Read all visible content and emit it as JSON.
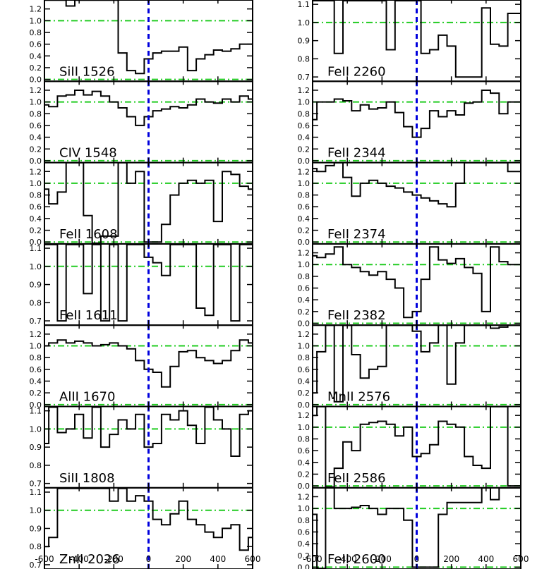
{
  "chart_data": {
    "type": "line",
    "style": "step",
    "colors": {
      "spectrum": "#000000",
      "zero_line": "#0000dd",
      "reference_lines": "#22cc22"
    },
    "x_axis": {
      "range": [
        -600,
        600
      ],
      "ticks": [
        -600,
        -400,
        -200,
        0,
        200,
        400,
        600
      ],
      "tick_labels": [
        "-600",
        "-400",
        "-200",
        "0",
        "200",
        "400",
        "600"
      ]
    },
    "panels": [
      {
        "label": "SiII 1526",
        "column": 0,
        "row": 0,
        "ylim": [
          -0.02,
          1.34
        ],
        "yticks": [
          0.0,
          0.2,
          0.4,
          0.6,
          0.8,
          1.0,
          1.2
        ],
        "ytick_labels": [
          "0.0",
          "0.2",
          "0.4",
          "0.6",
          "0.8",
          "1.0",
          "1.2"
        ],
        "ref_lines": [
          1.0,
          0.0
        ],
        "x": [
          -600,
          -550,
          -500,
          -450,
          -400,
          -350,
          -300,
          -250,
          -200,
          -150,
          -100,
          -50,
          0,
          50,
          100,
          150,
          200,
          250,
          300,
          350,
          400,
          450,
          500,
          550,
          600
        ],
        "y": [
          1.35,
          1.35,
          1.35,
          1.25,
          1.35,
          1.35,
          1.35,
          1.35,
          1.35,
          0.45,
          0.15,
          0.1,
          0.35,
          0.45,
          0.48,
          0.48,
          0.55,
          0.15,
          0.35,
          0.42,
          0.5,
          0.48,
          0.52,
          0.6,
          0.6
        ]
      },
      {
        "label": "CIV 1548",
        "column": 0,
        "row": 1,
        "ylim": [
          -0.02,
          1.34
        ],
        "yticks": [
          0.0,
          0.2,
          0.4,
          0.6,
          0.8,
          1.0,
          1.2
        ],
        "ytick_labels": [
          "0.0",
          "0.2",
          "0.4",
          "0.6",
          "0.8",
          "1.0",
          "1.2"
        ],
        "ref_lines": [
          1.0,
          0.0
        ],
        "x": [
          -600,
          -550,
          -500,
          -450,
          -400,
          -350,
          -300,
          -250,
          -200,
          -150,
          -100,
          -50,
          0,
          50,
          100,
          150,
          200,
          250,
          300,
          350,
          400,
          450,
          500,
          550,
          600
        ],
        "y": [
          0.95,
          0.92,
          1.1,
          1.12,
          1.2,
          1.12,
          1.18,
          1.1,
          1.0,
          0.9,
          0.75,
          0.6,
          0.75,
          0.85,
          0.88,
          0.92,
          0.9,
          0.95,
          1.05,
          1.0,
          0.98,
          1.05,
          1.0,
          1.1,
          1.05
        ]
      },
      {
        "label": "FeII 1608",
        "column": 0,
        "row": 2,
        "ylim": [
          -0.02,
          1.34
        ],
        "yticks": [
          0.0,
          0.2,
          0.4,
          0.6,
          0.8,
          1.0,
          1.2
        ],
        "ytick_labels": [
          "0.0",
          "0.2",
          "0.4",
          "0.6",
          "0.8",
          "1.0",
          "1.2"
        ],
        "ref_lines": [
          1.0,
          0.0
        ],
        "x": [
          -600,
          -550,
          -500,
          -450,
          -400,
          -350,
          -300,
          -250,
          -200,
          -150,
          -100,
          -50,
          0,
          50,
          100,
          150,
          200,
          250,
          300,
          350,
          400,
          450,
          500,
          550,
          600
        ],
        "y": [
          0.9,
          0.65,
          0.85,
          1.35,
          1.35,
          0.45,
          -0.02,
          0.1,
          0.1,
          1.35,
          1.0,
          1.2,
          0.0,
          0.0,
          0.3,
          0.8,
          1.0,
          1.05,
          1.0,
          1.05,
          0.35,
          1.2,
          1.15,
          0.95,
          0.9
        ]
      },
      {
        "label": "FeII 1611",
        "column": 0,
        "row": 3,
        "ylim": [
          0.68,
          1.12
        ],
        "yticks": [
          0.7,
          0.8,
          0.9,
          1.0,
          1.1
        ],
        "ytick_labels": [
          "0.7",
          "0.8",
          "0.9",
          "1.0",
          "1.1"
        ],
        "ref_lines": [
          1.0
        ],
        "x": [
          -600,
          -550,
          -500,
          -450,
          -400,
          -350,
          -300,
          -250,
          -200,
          -150,
          -100,
          -50,
          0,
          50,
          100,
          150,
          200,
          250,
          300,
          350,
          400,
          450,
          500,
          550,
          600
        ],
        "y": [
          1.12,
          1.12,
          0.7,
          1.12,
          1.12,
          0.85,
          1.12,
          0.7,
          1.12,
          0.7,
          1.12,
          1.12,
          1.05,
          1.02,
          0.95,
          1.12,
          1.12,
          1.12,
          0.77,
          0.73,
          1.12,
          1.12,
          0.7,
          1.12,
          1.12
        ]
      },
      {
        "label": "AlII 1670",
        "column": 0,
        "row": 4,
        "ylim": [
          -0.02,
          1.34
        ],
        "yticks": [
          0.0,
          0.2,
          0.4,
          0.6,
          0.8,
          1.0,
          1.2
        ],
        "ytick_labels": [
          "0.0",
          "0.2",
          "0.4",
          "0.6",
          "0.8",
          "1.0",
          "1.2"
        ],
        "ref_lines": [
          1.0,
          0.0
        ],
        "x": [
          -600,
          -550,
          -500,
          -450,
          -400,
          -350,
          -300,
          -250,
          -200,
          -150,
          -100,
          -50,
          0,
          50,
          100,
          150,
          200,
          250,
          300,
          350,
          400,
          450,
          500,
          550,
          600
        ],
        "y": [
          1.0,
          1.05,
          1.1,
          1.05,
          1.08,
          1.05,
          1.0,
          1.02,
          1.05,
          1.0,
          0.95,
          0.75,
          0.6,
          0.55,
          0.3,
          0.65,
          0.9,
          0.92,
          0.8,
          0.75,
          0.7,
          0.75,
          0.92,
          1.1,
          1.05
        ]
      },
      {
        "label": "SiII 1808",
        "column": 0,
        "row": 5,
        "ylim": [
          0.68,
          1.12
        ],
        "yticks": [
          0.7,
          0.8,
          0.9,
          1.0,
          1.1
        ],
        "ytick_labels": [
          "0.7",
          "0.8",
          "0.9",
          "1.0",
          "1.1"
        ],
        "ref_lines": [
          1.0
        ],
        "x": [
          -600,
          -550,
          -500,
          -450,
          -400,
          -350,
          -300,
          -250,
          -200,
          -150,
          -100,
          -50,
          0,
          50,
          100,
          150,
          200,
          250,
          300,
          350,
          400,
          450,
          500,
          550,
          600
        ],
        "y": [
          0.92,
          1.12,
          0.98,
          1.0,
          1.08,
          0.95,
          1.12,
          0.9,
          0.97,
          1.05,
          1.0,
          1.08,
          0.9,
          0.92,
          1.08,
          1.05,
          1.1,
          1.02,
          0.92,
          1.12,
          1.05,
          1.0,
          0.85,
          1.08,
          1.1
        ]
      },
      {
        "label": "ZnII 2026",
        "column": 0,
        "row": 6,
        "ylim": [
          0.68,
          1.12
        ],
        "yticks": [
          0.7,
          0.8,
          0.9,
          1.0,
          1.1
        ],
        "ytick_labels": [
          "0.7",
          "0.8",
          "0.9",
          "1.0",
          "1.1"
        ],
        "ref_lines": [
          1.0
        ],
        "x": [
          -600,
          -550,
          -500,
          -450,
          -400,
          -350,
          -300,
          -250,
          -200,
          -150,
          -100,
          -50,
          0,
          50,
          100,
          150,
          200,
          250,
          300,
          350,
          400,
          450,
          500,
          550,
          600
        ],
        "y": [
          0.8,
          0.85,
          1.12,
          1.12,
          1.12,
          1.12,
          1.12,
          1.12,
          1.05,
          1.12,
          1.05,
          1.08,
          1.05,
          0.95,
          0.92,
          0.98,
          1.05,
          0.95,
          0.92,
          0.88,
          0.85,
          0.9,
          0.92,
          0.78,
          0.85
        ]
      },
      {
        "label": "FeII 2260",
        "column": 1,
        "row": 0,
        "ylim": [
          0.68,
          1.12
        ],
        "yticks": [
          0.7,
          0.8,
          0.9,
          1.0,
          1.1
        ],
        "ytick_labels": [
          "0.7",
          "0.8",
          "0.9",
          "1.0",
          "1.1"
        ],
        "ref_lines": [
          1.0
        ],
        "x": [
          -600,
          -550,
          -500,
          -450,
          -400,
          -350,
          -300,
          -250,
          -200,
          -150,
          -100,
          -50,
          0,
          50,
          100,
          150,
          200,
          250,
          300,
          350,
          400,
          450,
          500,
          550,
          600
        ],
        "y": [
          1.12,
          1.12,
          1.12,
          0.83,
          1.12,
          1.12,
          1.12,
          1.12,
          1.12,
          0.85,
          1.12,
          1.12,
          1.12,
          0.83,
          0.85,
          0.93,
          0.87,
          0.7,
          0.7,
          0.7,
          1.08,
          0.88,
          0.87,
          1.05,
          1.05
        ]
      },
      {
        "label": "FeII 2344",
        "column": 1,
        "row": 1,
        "ylim": [
          -0.02,
          1.34
        ],
        "yticks": [
          0.0,
          0.2,
          0.4,
          0.6,
          0.8,
          1.0,
          1.2
        ],
        "ytick_labels": [
          "0.0",
          "0.2",
          "0.4",
          "0.6",
          "0.8",
          "1.0",
          "1.2"
        ],
        "ref_lines": [
          1.0,
          0.0
        ],
        "x": [
          -600,
          -550,
          -500,
          -450,
          -400,
          -350,
          -300,
          -250,
          -200,
          -150,
          -100,
          -50,
          0,
          50,
          100,
          150,
          200,
          250,
          300,
          350,
          400,
          450,
          500,
          550,
          600
        ],
        "y": [
          0.7,
          1.0,
          1.0,
          1.05,
          1.02,
          0.85,
          0.95,
          0.88,
          0.9,
          1.0,
          0.82,
          0.58,
          0.4,
          0.55,
          0.85,
          0.75,
          0.85,
          0.78,
          0.98,
          1.0,
          1.2,
          1.15,
          0.8,
          1.0,
          1.0
        ]
      },
      {
        "label": "FeII 2374",
        "column": 1,
        "row": 2,
        "ylim": [
          -0.02,
          1.34
        ],
        "yticks": [
          0.0,
          0.2,
          0.4,
          0.6,
          0.8,
          1.0,
          1.2
        ],
        "ytick_labels": [
          "0.0",
          "0.2",
          "0.4",
          "0.6",
          "0.8",
          "1.0",
          "1.2"
        ],
        "ref_lines": [
          1.0,
          0.0
        ],
        "x": [
          -600,
          -550,
          -500,
          -450,
          -400,
          -350,
          -300,
          -250,
          -200,
          -150,
          -100,
          -50,
          0,
          50,
          100,
          150,
          200,
          250,
          300,
          350,
          400,
          450,
          500,
          550,
          600
        ],
        "y": [
          1.25,
          1.2,
          1.3,
          1.35,
          1.1,
          0.78,
          1.0,
          1.05,
          1.0,
          0.95,
          0.92,
          0.85,
          0.8,
          0.75,
          0.7,
          0.65,
          0.6,
          1.0,
          1.35,
          1.35,
          1.35,
          1.35,
          1.35,
          1.2,
          1.2
        ]
      },
      {
        "label": "FeII 2382",
        "column": 1,
        "row": 3,
        "ylim": [
          -0.02,
          1.34
        ],
        "yticks": [
          0.0,
          0.2,
          0.4,
          0.6,
          0.8,
          1.0,
          1.2
        ],
        "ytick_labels": [
          "0.0",
          "0.2",
          "0.4",
          "0.6",
          "0.8",
          "1.0",
          "1.2"
        ],
        "ref_lines": [
          1.0,
          0.0
        ],
        "x": [
          -600,
          -550,
          -500,
          -450,
          -400,
          -350,
          -300,
          -250,
          -200,
          -150,
          -100,
          -50,
          0,
          50,
          100,
          150,
          200,
          250,
          300,
          350,
          400,
          450,
          500,
          550,
          600
        ],
        "y": [
          1.15,
          1.12,
          1.18,
          1.3,
          1.0,
          0.95,
          0.88,
          0.82,
          0.88,
          0.75,
          0.6,
          0.1,
          0.2,
          0.75,
          1.3,
          1.08,
          1.02,
          1.1,
          0.95,
          0.85,
          0.2,
          1.3,
          1.05,
          1.0,
          1.0
        ]
      },
      {
        "label": "MnII 2576",
        "column": 1,
        "row": 4,
        "ylim": [
          -0.02,
          1.34
        ],
        "yticks": [
          0.0,
          0.2,
          0.4,
          0.6,
          0.8,
          1.0,
          1.2
        ],
        "ytick_labels": [
          "0.0",
          "0.2",
          "0.4",
          "0.6",
          "0.8",
          "1.0",
          "1.2"
        ],
        "ref_lines": [
          1.0,
          0.0
        ],
        "x": [
          -600,
          -550,
          -500,
          -450,
          -400,
          -350,
          -300,
          -250,
          -200,
          -150,
          -100,
          -50,
          0,
          50,
          100,
          150,
          200,
          250,
          300,
          350,
          400,
          450,
          500,
          550,
          600
        ],
        "y": [
          0.2,
          0.9,
          1.35,
          0.05,
          1.35,
          0.85,
          0.45,
          0.6,
          0.65,
          1.35,
          1.35,
          1.35,
          1.25,
          0.9,
          1.05,
          1.35,
          0.35,
          1.05,
          1.35,
          1.35,
          1.35,
          1.3,
          1.32,
          1.35,
          1.35
        ]
      },
      {
        "label": "FeII 2586",
        "column": 1,
        "row": 5,
        "ylim": [
          -0.02,
          1.34
        ],
        "yticks": [
          0.0,
          0.2,
          0.4,
          0.6,
          0.8,
          1.0,
          1.2
        ],
        "ytick_labels": [
          "0.0",
          "0.2",
          "0.4",
          "0.6",
          "0.8",
          "1.0",
          "1.2"
        ],
        "ref_lines": [
          1.0,
          0.0
        ],
        "x": [
          -600,
          -550,
          -500,
          -450,
          -400,
          -350,
          -300,
          -250,
          -200,
          -150,
          -100,
          -50,
          0,
          50,
          100,
          150,
          200,
          250,
          300,
          350,
          400,
          450,
          500,
          550,
          600
        ],
        "y": [
          1.2,
          1.35,
          -0.02,
          0.3,
          0.75,
          0.6,
          1.05,
          1.08,
          1.1,
          1.05,
          0.85,
          1.0,
          0.5,
          0.55,
          0.7,
          1.1,
          1.05,
          1.0,
          0.5,
          0.35,
          0.3,
          1.35,
          1.35,
          0.0,
          0.0
        ]
      },
      {
        "label": "FeII 2600",
        "column": 1,
        "row": 6,
        "ylim": [
          -0.02,
          1.34
        ],
        "yticks": [
          0.0,
          0.2,
          0.4,
          0.6,
          0.8,
          1.0,
          1.2
        ],
        "ytick_labels": [
          "0.0",
          "0.2",
          "0.4",
          "0.6",
          "0.8",
          "1.0",
          "1.2"
        ],
        "ref_lines": [
          1.0,
          0.0
        ],
        "x": [
          -600,
          -550,
          -500,
          -450,
          -400,
          -350,
          -300,
          -250,
          -200,
          -150,
          -100,
          -50,
          0,
          50,
          100,
          150,
          200,
          250,
          300,
          350,
          400,
          450,
          500,
          550,
          600
        ],
        "y": [
          0.9,
          -0.02,
          1.35,
          1.0,
          1.0,
          1.02,
          1.05,
          1.0,
          0.9,
          1.0,
          1.0,
          0.8,
          0.0,
          0.0,
          0.0,
          0.9,
          1.1,
          1.1,
          1.1,
          1.1,
          1.35,
          1.15,
          1.35,
          1.35,
          1.35
        ]
      }
    ]
  }
}
